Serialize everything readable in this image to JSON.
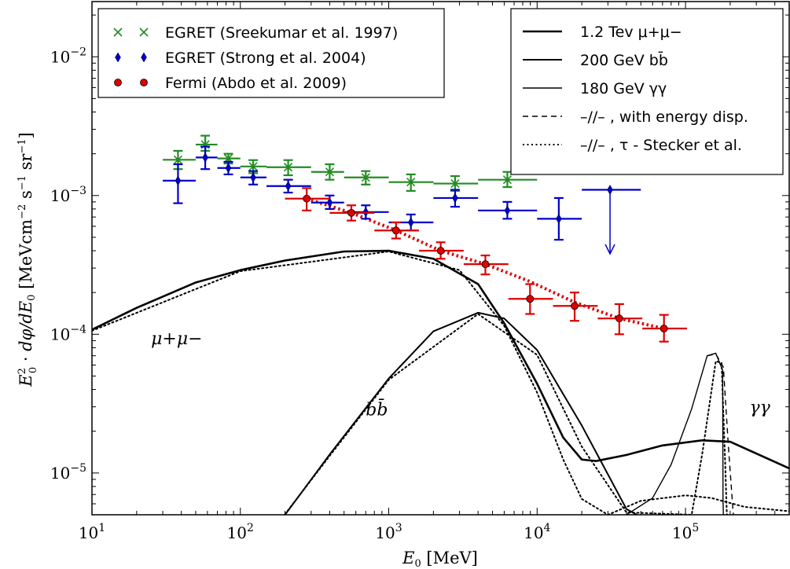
{
  "chart_data": {
    "type": "scatter",
    "xlabel": "E_0 [MeV]",
    "ylabel": "E_0^2 · dφ/dE_0 [MeVcm^-2 s^-1 sr^-1]",
    "x_scale": "log",
    "y_scale": "log",
    "xlim": [
      10,
      500000
    ],
    "ylim": [
      5e-06,
      0.025
    ],
    "x_ticks": [
      {
        "value": 10,
        "base": "10",
        "exp": "1"
      },
      {
        "value": 100,
        "base": "10",
        "exp": "2"
      },
      {
        "value": 1000,
        "base": "10",
        "exp": "3"
      },
      {
        "value": 10000,
        "base": "10",
        "exp": "4"
      },
      {
        "value": 100000,
        "base": "10",
        "exp": "5"
      }
    ],
    "y_ticks": [
      {
        "value": 1e-05,
        "base": "10",
        "exp": "−5"
      },
      {
        "value": 0.0001,
        "base": "10",
        "exp": "−4"
      },
      {
        "value": 0.001,
        "base": "10",
        "exp": "−3"
      },
      {
        "value": 0.01,
        "base": "10",
        "exp": "−2"
      }
    ],
    "data_legend": [
      {
        "text": "EGRET (Sreekumar et al. 1997)",
        "color": "#228b22",
        "marker": "x"
      },
      {
        "text": "EGRET (Strong et al. 2004)",
        "color": "#0000cc",
        "marker": "diamond"
      },
      {
        "text": "Fermi (Abdo et al. 2009)",
        "color": "#dd0000",
        "marker": "circle"
      }
    ],
    "model_legend": [
      {
        "text": "1.2 Tev μ+μ−",
        "style": "thick"
      },
      {
        "text": "200 GeV bb̄",
        "style": "medium"
      },
      {
        "text": "180 GeV γγ",
        "style": "thin"
      },
      {
        "text": "–//– , with energy disp.",
        "style": "dashed"
      },
      {
        "text": "–//– , τ - Stecker et al.",
        "style": "dotted"
      }
    ],
    "annotations": [
      {
        "text": "μ+μ−",
        "x": 25,
        "y": 8.5e-05
      },
      {
        "text": "bb̄",
        "x": 700,
        "y": 2.6e-05
      },
      {
        "text": "γγ",
        "x": 270000,
        "y": 2.7e-05
      }
    ],
    "series": [
      {
        "name": "EGRET (Sreekumar et al. 1997)",
        "color": "#228b22",
        "marker": "x",
        "points": [
          {
            "x": 38,
            "y": 0.00181,
            "xlo": 30,
            "xhi": 50,
            "ylo": 0.00155,
            "yhi": 0.0021
          },
          {
            "x": 58,
            "y": 0.00233,
            "xlo": 50,
            "xhi": 70,
            "ylo": 0.0021,
            "yhi": 0.0027
          },
          {
            "x": 83,
            "y": 0.00185,
            "xlo": 70,
            "xhi": 100,
            "ylo": 0.0017,
            "yhi": 0.002
          },
          {
            "x": 122,
            "y": 0.00162,
            "xlo": 100,
            "xhi": 150,
            "ylo": 0.00145,
            "yhi": 0.0018
          },
          {
            "x": 210,
            "y": 0.0016,
            "xlo": 150,
            "xhi": 300,
            "ylo": 0.0014,
            "yhi": 0.0018
          },
          {
            "x": 400,
            "y": 0.00148,
            "xlo": 300,
            "xhi": 500,
            "ylo": 0.0013,
            "yhi": 0.00168
          },
          {
            "x": 700,
            "y": 0.00135,
            "xlo": 500,
            "xhi": 1000,
            "ylo": 0.0012,
            "yhi": 0.0015
          },
          {
            "x": 1410,
            "y": 0.00125,
            "xlo": 1000,
            "xhi": 2000,
            "ylo": 0.00108,
            "yhi": 0.00142
          },
          {
            "x": 2800,
            "y": 0.00122,
            "xlo": 2000,
            "xhi": 4000,
            "ylo": 0.00108,
            "yhi": 0.00138
          },
          {
            "x": 6300,
            "y": 0.0013,
            "xlo": 4000,
            "xhi": 10000,
            "ylo": 0.00115,
            "yhi": 0.00148
          }
        ]
      },
      {
        "name": "EGRET (Strong et al. 2004)",
        "color": "#0000cc",
        "marker": "diamond",
        "points": [
          {
            "x": 38,
            "y": 0.00128,
            "xlo": 30,
            "xhi": 50,
            "ylo": 0.00088,
            "yhi": 0.00168
          },
          {
            "x": 58,
            "y": 0.00188,
            "xlo": 50,
            "xhi": 70,
            "ylo": 0.00155,
            "yhi": 0.00225
          },
          {
            "x": 83,
            "y": 0.00158,
            "xlo": 70,
            "xhi": 100,
            "ylo": 0.00142,
            "yhi": 0.00175
          },
          {
            "x": 122,
            "y": 0.00135,
            "xlo": 100,
            "xhi": 150,
            "ylo": 0.0012,
            "yhi": 0.0015
          },
          {
            "x": 210,
            "y": 0.00117,
            "xlo": 150,
            "xhi": 300,
            "ylo": 0.00105,
            "yhi": 0.0013
          },
          {
            "x": 400,
            "y": 0.00089,
            "xlo": 300,
            "xhi": 500,
            "ylo": 0.0008,
            "yhi": 0.001
          },
          {
            "x": 700,
            "y": 0.00076,
            "xlo": 500,
            "xhi": 1000,
            "ylo": 0.00068,
            "yhi": 0.00085
          },
          {
            "x": 1410,
            "y": 0.00064,
            "xlo": 1000,
            "xhi": 2000,
            "ylo": 0.00056,
            "yhi": 0.00073
          },
          {
            "x": 2800,
            "y": 0.00096,
            "xlo": 2000,
            "xhi": 4000,
            "ylo": 0.00083,
            "yhi": 0.0011
          },
          {
            "x": 6300,
            "y": 0.00078,
            "xlo": 4000,
            "xhi": 10000,
            "ylo": 0.00068,
            "yhi": 0.0009
          },
          {
            "x": 14000,
            "y": 0.00068,
            "xlo": 10000,
            "xhi": 20000,
            "ylo": 0.00048,
            "yhi": 0.00096
          },
          {
            "x": 31000,
            "y": 0.0011,
            "xlo": 20000,
            "xhi": 50000,
            "upper_limit": true,
            "arrow_to": 0.00038
          }
        ]
      },
      {
        "name": "Fermi (Abdo et al. 2009)",
        "color": "#dd0000",
        "marker": "circle",
        "points": [
          {
            "x": 280,
            "y": 0.00095,
            "xlo": 200,
            "xhi": 400,
            "ylo": 0.00078,
            "yhi": 0.00113
          },
          {
            "x": 560,
            "y": 0.00075,
            "xlo": 400,
            "xhi": 800,
            "ylo": 0.00066,
            "yhi": 0.00085
          },
          {
            "x": 1120,
            "y": 0.00056,
            "xlo": 800,
            "xhi": 1600,
            "ylo": 0.00049,
            "yhi": 0.00064
          },
          {
            "x": 2240,
            "y": 0.0004,
            "xlo": 1600,
            "xhi": 3200,
            "ylo": 0.00035,
            "yhi": 0.00046
          },
          {
            "x": 4480,
            "y": 0.00032,
            "xlo": 3200,
            "xhi": 6400,
            "ylo": 0.00027,
            "yhi": 0.00037
          },
          {
            "x": 8960,
            "y": 0.00018,
            "xlo": 6400,
            "xhi": 12800,
            "ylo": 0.00014,
            "yhi": 0.00023
          },
          {
            "x": 17900,
            "y": 0.00016,
            "xlo": 12800,
            "xhi": 25600,
            "ylo": 0.000125,
            "yhi": 0.0002
          },
          {
            "x": 35800,
            "y": 0.00013,
            "xlo": 25600,
            "xhi": 51200,
            "ylo": 0.0001,
            "yhi": 0.000165
          },
          {
            "x": 71600,
            "y": 0.00011,
            "xlo": 51200,
            "xhi": 102400,
            "ylo": 8.85e-05,
            "yhi": 0.000138
          }
        ],
        "fit_line": {
          "style": "dotted-thick",
          "points": [
            [
              280,
              0.00095
            ],
            [
              560,
              0.00075
            ],
            [
              1120,
              0.00056
            ],
            [
              2240,
              0.0004
            ],
            [
              4480,
              0.00032
            ],
            [
              8960,
              0.00024
            ],
            [
              17900,
              0.00017
            ],
            [
              35800,
              0.00013
            ],
            [
              71600,
              0.00011
            ]
          ]
        }
      },
      {
        "name": "1.2 Tev μ+μ−",
        "style": "thick",
        "points": [
          [
            10,
            0.000108
          ],
          [
            20,
            0.000155
          ],
          [
            50,
            0.000236
          ],
          [
            100,
            0.00029
          ],
          [
            200,
            0.00034
          ],
          [
            500,
            0.000395
          ],
          [
            1000,
            0.0004
          ],
          [
            2000,
            0.00035
          ],
          [
            4000,
            0.00023
          ],
          [
            6000,
            0.00012
          ],
          [
            10000,
            4.4e-05
          ],
          [
            15000,
            1.8e-05
          ],
          [
            20000,
            1.25e-05
          ],
          [
            25000,
            1.22e-05
          ],
          [
            40000,
            1.35e-05
          ],
          [
            70000,
            1.58e-05
          ],
          [
            130000,
            1.72e-05
          ],
          [
            200000,
            1.68e-05
          ],
          [
            500000,
            1.08e-05
          ]
        ]
      },
      {
        "name": "200 GeV bb̄",
        "style": "medium",
        "points": [
          [
            200,
            5e-06
          ],
          [
            400,
            1.36e-05
          ],
          [
            1000,
            4.8e-05
          ],
          [
            2000,
            0.000105
          ],
          [
            4000,
            0.000143
          ],
          [
            6000,
            0.00013
          ],
          [
            10000,
            7.7e-05
          ],
          [
            20000,
            2.2e-05
          ],
          [
            40000,
            5.5e-06
          ],
          [
            47000,
            5e-06
          ]
        ]
      },
      {
        "name": "180 GeV γγ",
        "style": "thin",
        "points": [
          [
            40000,
            5e-06
          ],
          [
            60000,
            6.6e-06
          ],
          [
            80000,
            1.15e-05
          ],
          [
            110000,
            2.9e-05
          ],
          [
            140000,
            7e-05
          ],
          [
            160000,
            7.3e-05
          ],
          [
            178000,
            5.5e-05
          ],
          [
            179000,
            6.5e-06
          ],
          [
            180000,
            5e-06
          ]
        ]
      },
      {
        "name": "–//– , with energy disp.",
        "style": "dashed",
        "points": [
          [
            140000,
            7e-05
          ],
          [
            160000,
            7.2e-05
          ],
          [
            180000,
            5.8e-05
          ],
          [
            195000,
            1.5e-05
          ],
          [
            210000,
            5e-06
          ]
        ]
      },
      {
        "name": "–//– , τ - Stecker et al.",
        "style": "dotted",
        "points": [
          [
            10,
            0.000106
          ],
          [
            100,
            0.000285
          ],
          [
            1000,
            0.000395
          ],
          [
            3000,
            0.00029
          ],
          [
            6000,
            0.000115
          ],
          [
            10000,
            3.8e-05
          ],
          [
            15000,
            1.25e-05
          ],
          [
            20000,
            6.5e-06
          ],
          [
            30000,
            5e-06
          ],
          [
            50000,
            6.3e-06
          ],
          [
            100000,
            6.9e-06
          ],
          [
            150000,
            6.6e-06
          ],
          [
            250000,
            5.7e-06
          ],
          [
            500000,
            5.3e-06
          ],
          [
            200,
            5.05e-06
          ],
          [
            400,
            1.33e-05
          ],
          [
            1000,
            4.7e-05
          ],
          [
            4000,
            0.00014
          ],
          [
            10000,
            7.1e-05
          ],
          [
            20000,
            1.55e-05
          ],
          [
            40000,
            5.2e-06
          ],
          [
            110000,
            5e-06
          ],
          [
            130000,
            1.4e-05
          ],
          [
            160000,
            6.4e-05
          ],
          [
            175000,
            6.2e-05
          ],
          [
            185000,
            1.2e-05
          ],
          [
            190000,
            5e-06
          ]
        ]
      }
    ]
  }
}
